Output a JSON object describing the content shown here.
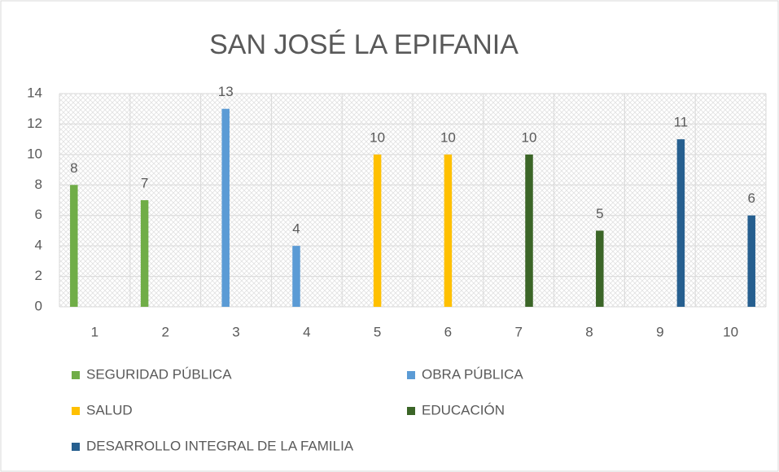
{
  "chart_data": {
    "type": "bar",
    "title": "SAN JOSÉ LA EPIFANIA",
    "categories": [
      "1",
      "2",
      "3",
      "4",
      "5",
      "6",
      "7",
      "8",
      "9",
      "10"
    ],
    "series": [
      {
        "name": "SEGURIDAD PÚBLICA",
        "color": "#70ad47",
        "values": [
          8,
          7,
          null,
          null,
          null,
          null,
          null,
          null,
          null,
          null
        ]
      },
      {
        "name": "OBRA PÚBLICA",
        "color": "#5b9bd5",
        "values": [
          null,
          null,
          13,
          4,
          null,
          null,
          null,
          null,
          null,
          null
        ]
      },
      {
        "name": "SALUD",
        "color": "#ffc000",
        "values": [
          null,
          null,
          null,
          null,
          10,
          10,
          null,
          null,
          null,
          null
        ]
      },
      {
        "name": "EDUCACIÓN",
        "color": "#3b6527",
        "values": [
          null,
          null,
          null,
          null,
          null,
          null,
          10,
          5,
          null,
          null
        ]
      },
      {
        "name": "DESARROLLO INTEGRAL DE LA FAMILIA",
        "color": "#265f8f",
        "values": [
          null,
          null,
          null,
          null,
          null,
          null,
          null,
          null,
          11,
          6
        ]
      }
    ],
    "ylim": [
      0,
      14
    ],
    "yticks": [
      0,
      2,
      4,
      6,
      8,
      10,
      12,
      14
    ],
    "grid": true,
    "legend": "bottom"
  }
}
